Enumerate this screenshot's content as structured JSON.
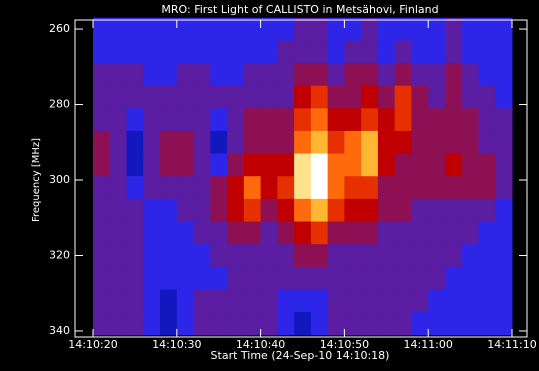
{
  "chart_data": {
    "type": "heatmap",
    "title": "MRO: First Light of CALLISTO in Metsähovi, Finland",
    "x_label": "Start Time (24-Sep-10 14:10:18)",
    "y_label": "Frequency [MHz]",
    "x": [
      "14:10:20",
      "14:10:22",
      "14:10:24",
      "14:10:26",
      "14:10:28",
      "14:10:30",
      "14:10:32",
      "14:10:34",
      "14:10:36",
      "14:10:38",
      "14:10:40",
      "14:10:42",
      "14:10:44",
      "14:10:46",
      "14:10:48",
      "14:10:50",
      "14:10:52",
      "14:10:54",
      "14:10:56",
      "14:10:58",
      "14:11:00",
      "14:11:02",
      "14:11:04",
      "14:11:06",
      "14:11:08"
    ],
    "y": [
      260,
      266,
      272,
      278,
      284,
      290,
      296,
      302,
      308,
      314,
      320,
      326,
      332,
      338
    ],
    "values": [
      [
        2,
        2,
        2,
        2,
        2,
        2,
        2,
        2,
        2,
        2,
        2,
        2,
        3,
        3,
        2,
        2,
        3,
        2,
        2,
        2,
        2,
        3,
        2,
        2,
        2
      ],
      [
        2,
        2,
        2,
        2,
        2,
        2,
        2,
        2,
        2,
        2,
        2,
        3,
        3,
        3,
        2,
        3,
        3,
        2,
        3,
        2,
        2,
        3,
        2,
        2,
        2
      ],
      [
        3,
        3,
        3,
        2,
        2,
        3,
        3,
        2,
        2,
        3,
        3,
        3,
        4,
        4,
        3,
        4,
        4,
        3,
        4,
        3,
        3,
        4,
        3,
        2,
        2
      ],
      [
        3,
        3,
        3,
        3,
        3,
        3,
        3,
        3,
        3,
        3,
        3,
        3,
        5,
        6,
        4,
        4,
        5,
        4,
        6,
        4,
        3,
        4,
        3,
        3,
        2
      ],
      [
        3,
        3,
        2,
        3,
        3,
        3,
        3,
        2,
        3,
        4,
        4,
        4,
        6,
        7,
        5,
        5,
        6,
        5,
        6,
        4,
        4,
        4,
        4,
        3,
        3
      ],
      [
        4,
        3,
        1,
        3,
        4,
        4,
        3,
        1,
        3,
        4,
        4,
        4,
        7,
        8,
        6,
        7,
        8,
        5,
        5,
        4,
        4,
        4,
        4,
        3,
        3
      ],
      [
        4,
        3,
        1,
        3,
        4,
        4,
        3,
        2,
        4,
        5,
        5,
        5,
        9,
        10,
        7,
        7,
        8,
        5,
        4,
        4,
        4,
        5,
        4,
        4,
        3
      ],
      [
        3,
        3,
        2,
        3,
        3,
        3,
        3,
        4,
        5,
        7,
        5,
        6,
        9,
        10,
        7,
        6,
        6,
        4,
        4,
        4,
        4,
        4,
        4,
        4,
        3
      ],
      [
        3,
        3,
        3,
        2,
        2,
        3,
        3,
        4,
        5,
        6,
        4,
        5,
        7,
        8,
        6,
        5,
        5,
        4,
        4,
        3,
        3,
        3,
        3,
        3,
        2
      ],
      [
        3,
        3,
        3,
        2,
        2,
        2,
        3,
        3,
        4,
        4,
        3,
        4,
        5,
        6,
        4,
        4,
        4,
        3,
        3,
        3,
        3,
        3,
        3,
        2,
        2
      ],
      [
        3,
        3,
        3,
        2,
        2,
        2,
        2,
        3,
        3,
        3,
        3,
        3,
        4,
        4,
        3,
        3,
        3,
        3,
        3,
        3,
        3,
        3,
        2,
        2,
        2
      ],
      [
        3,
        3,
        3,
        2,
        2,
        2,
        2,
        2,
        3,
        3,
        3,
        3,
        3,
        3,
        3,
        3,
        3,
        3,
        3,
        3,
        3,
        2,
        2,
        2,
        2
      ],
      [
        3,
        3,
        3,
        2,
        1,
        2,
        3,
        3,
        3,
        3,
        3,
        2,
        2,
        2,
        3,
        3,
        3,
        3,
        3,
        3,
        2,
        2,
        2,
        2,
        2
      ],
      [
        3,
        3,
        3,
        2,
        1,
        2,
        3,
        3,
        3,
        3,
        3,
        2,
        1,
        2,
        3,
        3,
        3,
        3,
        3,
        2,
        2,
        2,
        2,
        2,
        2
      ]
    ],
    "xlim": [
      "14:10:20",
      "14:11:10"
    ],
    "xticks": [
      "14:10:20",
      "14:10:30",
      "14:10:40",
      "14:10:50",
      "14:11:00",
      "14:11:10"
    ],
    "ylim": [
      257.6,
      341.6
    ],
    "yticks": [
      260,
      280,
      300,
      320,
      340
    ],
    "y_inverted": true,
    "zlim": [
      0,
      10
    ],
    "colormap": [
      "#00005a",
      "#1e28ff",
      "#6a1a8a",
      "#c00000",
      "#ff5000",
      "#ffd040",
      "#ffffff"
    ]
  }
}
